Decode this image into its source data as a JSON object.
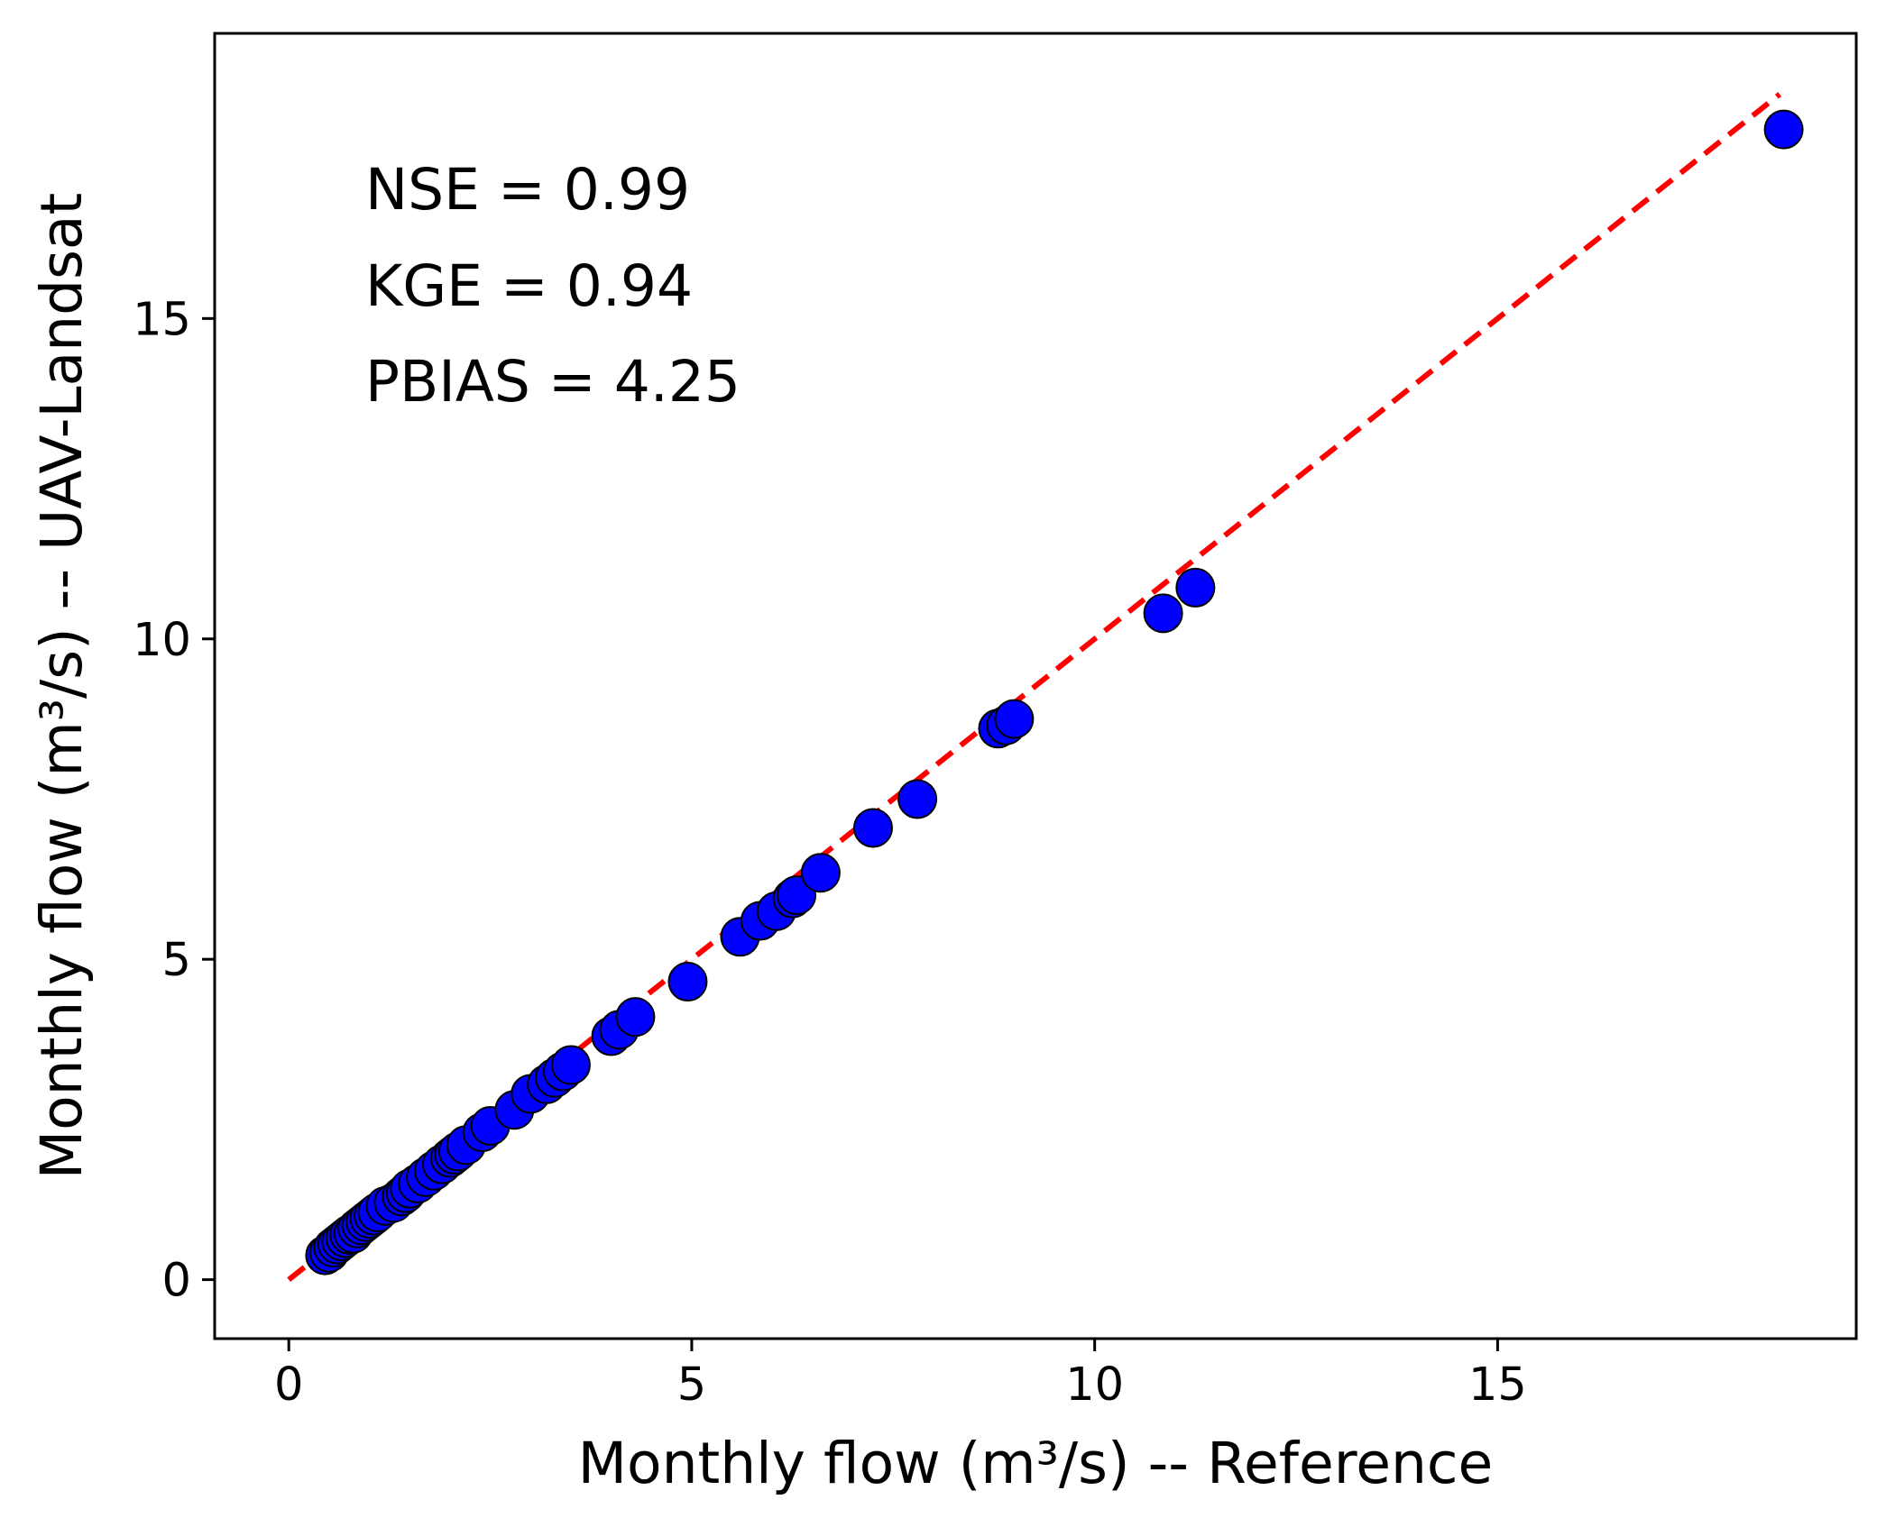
{
  "chart_data": {
    "type": "scatter",
    "title": "",
    "xlabel": "Monthly flow (m³/s) -- Reference",
    "ylabel": "Monthly flow (m³/s) -- UAV-Landsat",
    "xlim": [
      -0.92,
      19.45
    ],
    "ylim": [
      -0.92,
      19.45
    ],
    "xticks": [
      0,
      5,
      10,
      15
    ],
    "yticks": [
      0,
      5,
      10,
      15
    ],
    "xtick_labels": [
      "0",
      "5",
      "10",
      "15"
    ],
    "ytick_labels": [
      "0",
      "5",
      "10",
      "15"
    ],
    "grid": false,
    "annotations": [
      {
        "id": "nse",
        "text": "NSE = 0.99"
      },
      {
        "id": "kge",
        "text": "KGE = 0.94"
      },
      {
        "id": "pbias",
        "text": "PBIAS = 4.25"
      }
    ],
    "colors": {
      "points_fill": "#0000ff",
      "points_edge": "#000000",
      "reference_line": "#ff0000"
    },
    "reference_line": {
      "style": "dashed",
      "x": [
        0,
        18.5
      ],
      "y": [
        0,
        18.5
      ]
    },
    "series": [
      {
        "name": "Monthly flow",
        "x": [
          0.45,
          0.5,
          0.55,
          0.6,
          0.65,
          0.7,
          0.75,
          0.8,
          0.85,
          0.9,
          0.95,
          1.0,
          1.05,
          1.1,
          1.2,
          1.3,
          1.4,
          1.45,
          1.5,
          1.6,
          1.7,
          1.8,
          1.9,
          2.0,
          2.05,
          2.1,
          2.2,
          2.4,
          2.5,
          2.8,
          3.0,
          3.2,
          3.3,
          3.4,
          3.5,
          4.0,
          4.1,
          4.3,
          4.95,
          5.6,
          5.85,
          6.05,
          6.25,
          6.3,
          6.6,
          7.25,
          7.8,
          8.8,
          8.9,
          9.0,
          10.85,
          11.25,
          18.55
        ],
        "y": [
          0.38,
          0.42,
          0.5,
          0.55,
          0.6,
          0.65,
          0.7,
          0.72,
          0.8,
          0.85,
          0.9,
          0.95,
          1.0,
          1.05,
          1.15,
          1.2,
          1.3,
          1.35,
          1.42,
          1.5,
          1.6,
          1.7,
          1.8,
          1.9,
          1.95,
          2.0,
          2.1,
          2.3,
          2.4,
          2.65,
          2.9,
          3.05,
          3.15,
          3.25,
          3.35,
          3.8,
          3.9,
          4.1,
          4.65,
          5.35,
          5.6,
          5.75,
          5.95,
          6.0,
          6.35,
          7.05,
          7.5,
          8.6,
          8.65,
          8.75,
          10.4,
          10.8,
          17.95
        ]
      }
    ]
  }
}
